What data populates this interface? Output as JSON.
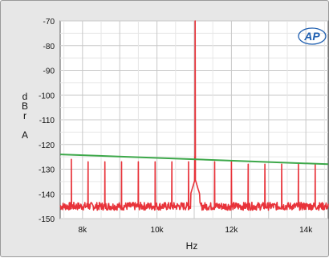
{
  "chart_data": {
    "type": "line",
    "title": "",
    "xlabel": "Hz",
    "ylabel": "dBr A",
    "xlim": [
      7400,
      14600
    ],
    "ylim": [
      -150,
      -70
    ],
    "x_ticks": [
      8000,
      10000,
      12000,
      14000
    ],
    "x_tick_labels": [
      "8k",
      "10k",
      "12k",
      "14k"
    ],
    "y_ticks": [
      -70,
      -80,
      -90,
      -100,
      -110,
      -120,
      -130,
      -140,
      -150
    ],
    "y_tick_labels": [
      "-70",
      "-80",
      "-90",
      "-100",
      "-110",
      "-120",
      "-130",
      "-140",
      "-150"
    ],
    "grid": true,
    "logo": "AP",
    "series": [
      {
        "color": "#e8333a",
        "description": "spectrum",
        "noise_floor": -145,
        "main_peak": {
          "x": 11025,
          "y": -70
        },
        "spurs": [
          {
            "x": 7700,
            "y": -126
          },
          {
            "x": 8150,
            "y": -127
          },
          {
            "x": 8600,
            "y": -127
          },
          {
            "x": 9050,
            "y": -127
          },
          {
            "x": 9500,
            "y": -127
          },
          {
            "x": 9950,
            "y": -127
          },
          {
            "x": 10400,
            "y": -127
          },
          {
            "x": 10850,
            "y": -127
          },
          {
            "x": 11550,
            "y": -127
          },
          {
            "x": 12000,
            "y": -127
          },
          {
            "x": 12450,
            "y": -128
          },
          {
            "x": 12900,
            "y": -128
          },
          {
            "x": 13350,
            "y": -128
          },
          {
            "x": 13800,
            "y": -128
          },
          {
            "x": 14250,
            "y": -128
          }
        ]
      },
      {
        "color": "#3da84a",
        "description": "limit",
        "points": [
          {
            "x": 7400,
            "y": -124
          },
          {
            "x": 14600,
            "y": -128
          }
        ]
      }
    ]
  }
}
